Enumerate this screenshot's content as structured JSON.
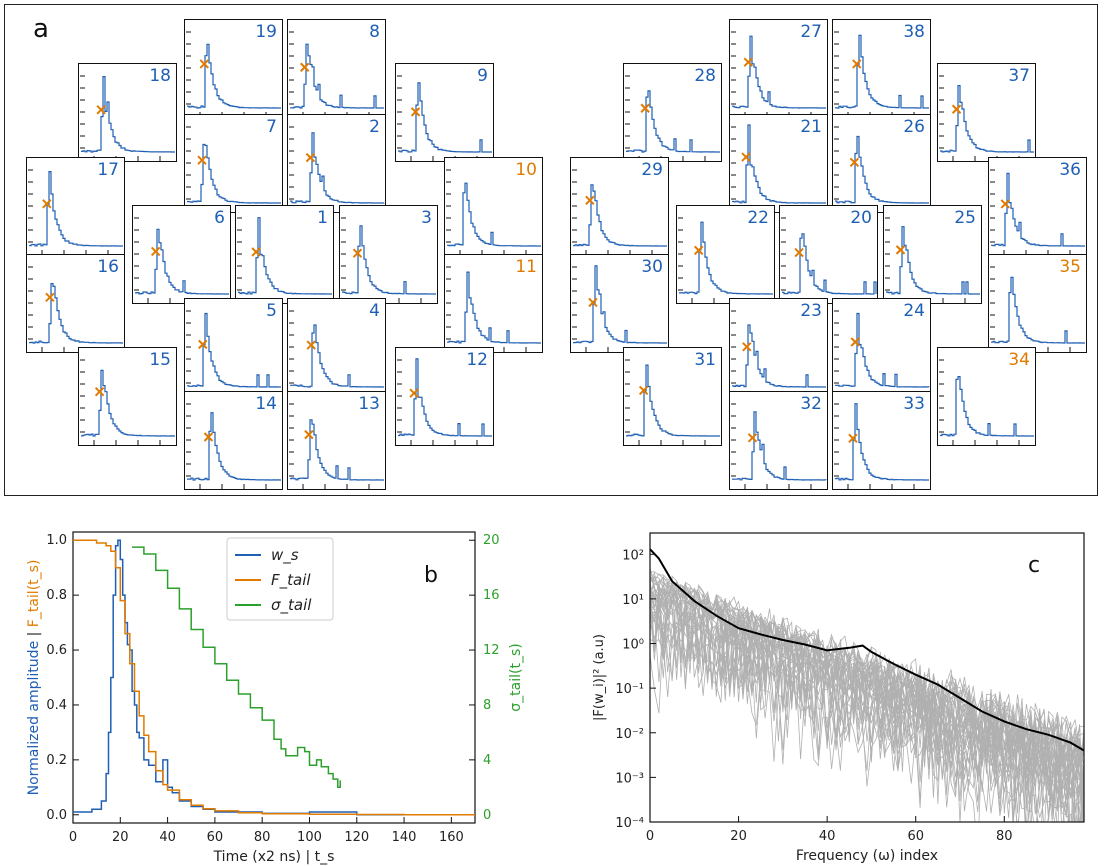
{
  "panel_a": {
    "label": "a",
    "channels": [
      {
        "n": "19",
        "c": "blue"
      },
      {
        "n": "8",
        "c": "blue"
      },
      {
        "n": "18",
        "c": "blue"
      },
      {
        "n": "9",
        "c": "blue"
      },
      {
        "n": "7",
        "c": "blue"
      },
      {
        "n": "2",
        "c": "blue"
      },
      {
        "n": "17",
        "c": "blue"
      },
      {
        "n": "10",
        "c": "orange"
      },
      {
        "n": "6",
        "c": "blue"
      },
      {
        "n": "1",
        "c": "blue"
      },
      {
        "n": "3",
        "c": "blue"
      },
      {
        "n": "16",
        "c": "blue"
      },
      {
        "n": "11",
        "c": "orange"
      },
      {
        "n": "5",
        "c": "blue"
      },
      {
        "n": "4",
        "c": "blue"
      },
      {
        "n": "15",
        "c": "blue"
      },
      {
        "n": "12",
        "c": "blue"
      },
      {
        "n": "14",
        "c": "blue"
      },
      {
        "n": "13",
        "c": "blue"
      },
      {
        "n": "27",
        "c": "blue"
      },
      {
        "n": "38",
        "c": "blue"
      },
      {
        "n": "28",
        "c": "blue"
      },
      {
        "n": "37",
        "c": "blue"
      },
      {
        "n": "21",
        "c": "blue"
      },
      {
        "n": "26",
        "c": "blue"
      },
      {
        "n": "29",
        "c": "blue"
      },
      {
        "n": "36",
        "c": "blue"
      },
      {
        "n": "22",
        "c": "blue"
      },
      {
        "n": "20",
        "c": "blue"
      },
      {
        "n": "25",
        "c": "blue"
      },
      {
        "n": "30",
        "c": "blue"
      },
      {
        "n": "35",
        "c": "orange"
      },
      {
        "n": "23",
        "c": "blue"
      },
      {
        "n": "24",
        "c": "blue"
      },
      {
        "n": "31",
        "c": "blue"
      },
      {
        "n": "34",
        "c": "orange"
      },
      {
        "n": "32",
        "c": "blue"
      },
      {
        "n": "33",
        "c": "blue"
      }
    ]
  },
  "colors": {
    "blue": "#1f5fb4",
    "orange": "#e07b00",
    "green": "#2ca02c",
    "gray": "#b0b0b0",
    "black": "#000000"
  },
  "chart_data": [
    {
      "type": "line",
      "label": "b",
      "xlabel": "Time (x2 ns) | t_s",
      "ylabel_left_parts": [
        "Normalized amplitude",
        " | ",
        "F_tail(t_s)"
      ],
      "ylabel_right": "σ_tail(t_s)",
      "xlim": [
        0,
        170
      ],
      "ylim_left": [
        -0.03,
        1.03
      ],
      "ylim_right": [
        -0.6,
        20.6
      ],
      "xticks": [
        0,
        20,
        40,
        60,
        80,
        100,
        120,
        140,
        160
      ],
      "yticks_left": [
        0.0,
        0.2,
        0.4,
        0.6,
        0.8,
        1.0
      ],
      "yticks_right": [
        0,
        4,
        8,
        12,
        16,
        20
      ],
      "legend": "top-center",
      "series": [
        {
          "name": "w_s",
          "axis": "left",
          "color": "#1f5fb4",
          "x": [
            0,
            8,
            12,
            14,
            15,
            16,
            17,
            18,
            19,
            20,
            21,
            22,
            23,
            24,
            25,
            26,
            27,
            28,
            30,
            32,
            35,
            38,
            40,
            42,
            45,
            50,
            55,
            60,
            70,
            80,
            100,
            120,
            140,
            170
          ],
          "y": [
            0.01,
            0.02,
            0.05,
            0.15,
            0.3,
            0.5,
            0.8,
            0.98,
            1.0,
            0.93,
            0.8,
            0.7,
            0.62,
            0.6,
            0.45,
            0.4,
            0.3,
            0.28,
            0.2,
            0.18,
            0.12,
            0.2,
            0.1,
            0.08,
            0.05,
            0.03,
            0.02,
            0.01,
            0.01,
            0.005,
            0.01,
            0.0,
            0.0,
            0.0
          ]
        },
        {
          "name": "F_tail",
          "axis": "left",
          "color": "#e07b00",
          "x": [
            0,
            10,
            14,
            16,
            18,
            20,
            22,
            24,
            26,
            28,
            30,
            32,
            35,
            38,
            40,
            45,
            50,
            55,
            60,
            70,
            80,
            100,
            120,
            140,
            170
          ],
          "y": [
            1.0,
            0.99,
            0.98,
            0.96,
            0.9,
            0.78,
            0.66,
            0.55,
            0.45,
            0.36,
            0.29,
            0.23,
            0.16,
            0.11,
            0.09,
            0.055,
            0.035,
            0.022,
            0.014,
            0.007,
            0.004,
            0.002,
            0.001,
            0.0,
            0.0
          ]
        },
        {
          "name": "σ_tail",
          "axis": "right",
          "color": "#2ca02c",
          "x": [
            25,
            30,
            35,
            40,
            45,
            50,
            55,
            60,
            65,
            70,
            75,
            80,
            85,
            88,
            90,
            93,
            95,
            98,
            100,
            103,
            105,
            108,
            110,
            112,
            113
          ],
          "y": [
            19.5,
            19.0,
            17.8,
            16.5,
            15.0,
            13.5,
            12.2,
            11.0,
            9.8,
            8.8,
            7.8,
            6.9,
            5.5,
            4.8,
            4.3,
            4.3,
            4.9,
            4.6,
            3.6,
            4.0,
            3.5,
            3.0,
            2.6,
            2.0,
            2.5
          ]
        }
      ]
    },
    {
      "type": "line",
      "label": "c",
      "xlabel": "Frequency (ω) index",
      "ylabel": "|F(w_i)|² (a.u)",
      "xlim": [
        0,
        98
      ],
      "ylim": [
        0.0001,
        300
      ],
      "yscale": "log",
      "xticks": [
        0,
        20,
        40,
        60,
        80
      ],
      "yticks": [
        "10⁻⁴",
        "10⁻³",
        "10⁻²",
        "10⁻¹",
        "10⁰",
        "10¹",
        "10²"
      ],
      "mean_series": {
        "color": "#000000",
        "x": [
          0,
          2,
          5,
          10,
          15,
          20,
          25,
          30,
          35,
          40,
          45,
          48,
          50,
          55,
          60,
          65,
          70,
          75,
          80,
          85,
          90,
          95,
          98
        ],
        "y": [
          130,
          80,
          25,
          9,
          4.2,
          2.2,
          1.6,
          1.2,
          0.95,
          0.7,
          0.8,
          0.9,
          0.65,
          0.35,
          0.2,
          0.12,
          0.06,
          0.03,
          0.018,
          0.012,
          0.009,
          0.006,
          0.004
        ]
      },
      "gray_series_count": 38,
      "gray_series_color": "#b0b0b0"
    }
  ]
}
